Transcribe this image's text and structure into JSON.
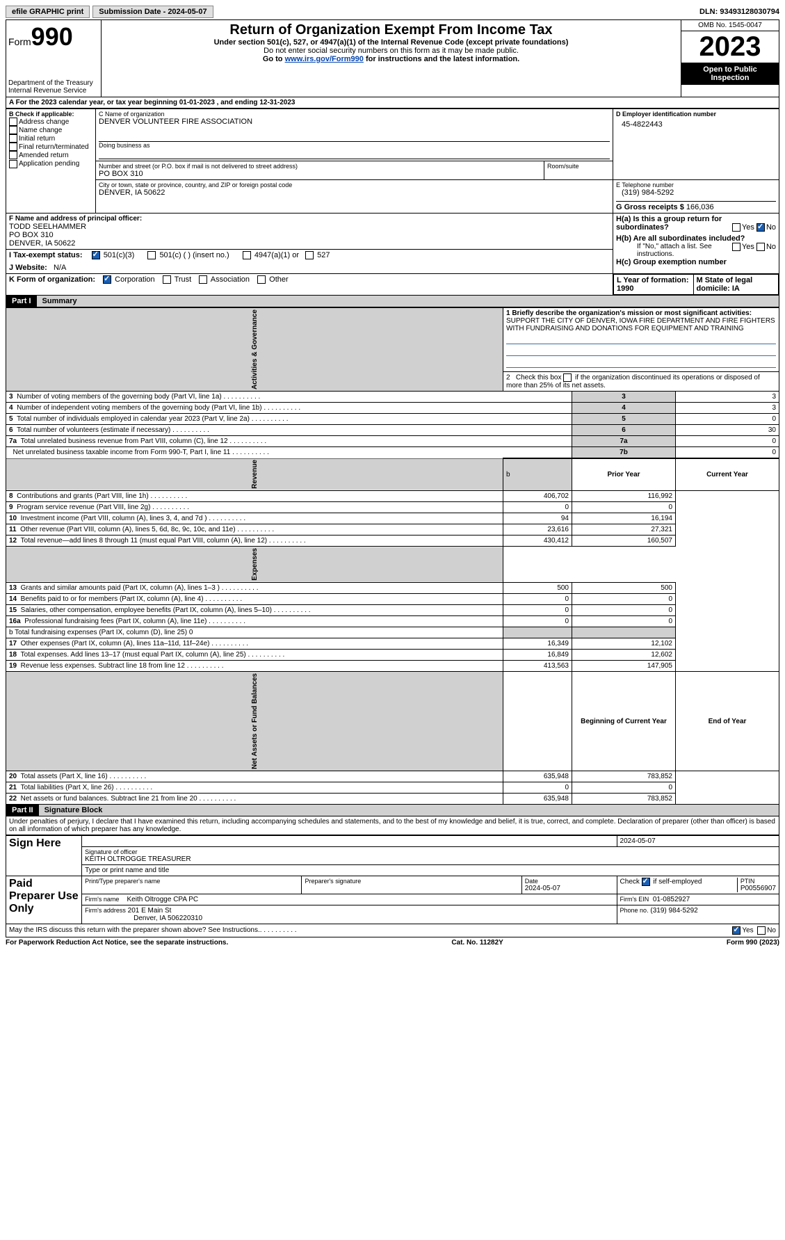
{
  "header": {
    "efile": "efile GRAPHIC print",
    "submission_label": "Submission Date - 2024-05-07",
    "dln_label": "DLN: 93493128030794"
  },
  "title_block": {
    "form_label": "Form",
    "form_no": "990",
    "dept1": "Department of the Treasury",
    "dept2": "Internal Revenue Service",
    "main_title": "Return of Organization Exempt From Income Tax",
    "sub1": "Under section 501(c), 527, or 4947(a)(1) of the Internal Revenue Code (except private foundations)",
    "sub2": "Do not enter social security numbers on this form as it may be made public.",
    "sub3_pre": "Go to ",
    "sub3_link": "www.irs.gov/Form990",
    "sub3_post": " for instructions and the latest information.",
    "omb": "OMB No. 1545-0047",
    "year": "2023",
    "open": "Open to Public Inspection"
  },
  "row_a": {
    "period": "A For the 2023 calendar year, or tax year beginning 01-01-2023    , and ending 12-31-2023",
    "b_label": "B Check if applicable:",
    "b_opts": [
      "Address change",
      "Name change",
      "Initial return",
      "Final return/terminated",
      "Amended return",
      "Application pending"
    ],
    "c_label": "C Name of organization",
    "c_name": "DENVER VOLUNTEER FIRE ASSOCIATION",
    "dba_label": "Doing business as",
    "addr_label": "Number and street (or P.O. box if mail is not delivered to street address)",
    "addr": "PO BOX 310",
    "room_label": "Room/suite",
    "city_label": "City or town, state or province, country, and ZIP or foreign postal code",
    "city": "DENVER, IA  50622",
    "d_label": "D Employer identification number",
    "d_ein": "45-4822443",
    "e_label": "E Telephone number",
    "e_phone": "(319) 984-5292",
    "g_label": "G Gross receipts $",
    "g_amount": "166,036",
    "f_label": "F  Name and address of principal officer:",
    "f_name": "TODD SEELHAMMER",
    "f_addr1": "PO BOX 310",
    "f_addr2": "DENVER, IA  50622",
    "ha_label": "H(a)  Is this a group return for subordinates?",
    "hb_label": "H(b)  Are all subordinates included?",
    "hb_note": "If \"No,\" attach a list. See instructions.",
    "hc_label": "H(c)  Group exemption number",
    "yes": "Yes",
    "no": "No",
    "i_label": "I  Tax-exempt status:",
    "i_opts": [
      "501(c)(3)",
      "501(c) (  ) (insert no.)",
      "4947(a)(1) or",
      "527"
    ],
    "j_label": "J  Website:",
    "j_val": "N/A",
    "k_label": "K Form of organization:",
    "k_opts": [
      "Corporation",
      "Trust",
      "Association",
      "Other"
    ],
    "l_label": "L Year of formation: 1990",
    "m_label": "M State of legal domicile: IA"
  },
  "part1": {
    "hdr": "Part I",
    "title": "Summary",
    "q1_label": "1  Briefly describe the organization's mission or most significant activities:",
    "q1_text": "SUPPORT THE CITY OF DENVER, IOWA FIRE DEPARTMENT AND FIRE FIGHTERS WITH FUNDRAISING AND DONATIONS FOR EQUIPMENT AND TRAINING",
    "q2": "2   Check this box        if the organization discontinued its operations or disposed of more than 25% of its net assets.",
    "gov_label": "Activities & Governance",
    "rev_label": "Revenue",
    "exp_label": "Expenses",
    "net_label": "Net Assets or Fund Balances",
    "lines_gov": [
      {
        "n": "3",
        "t": "Number of voting members of the governing body (Part VI, line 1a)",
        "b": "3",
        "v": "3"
      },
      {
        "n": "4",
        "t": "Number of independent voting members of the governing body (Part VI, line 1b)",
        "b": "4",
        "v": "3"
      },
      {
        "n": "5",
        "t": "Total number of individuals employed in calendar year 2023 (Part V, line 2a)",
        "b": "5",
        "v": "0"
      },
      {
        "n": "6",
        "t": "Total number of volunteers (estimate if necessary)",
        "b": "6",
        "v": "30"
      },
      {
        "n": "7a",
        "t": "Total unrelated business revenue from Part VIII, column (C), line 12",
        "b": "7a",
        "v": "0"
      },
      {
        "n": "",
        "t": "Net unrelated business taxable income from Form 990-T, Part I, line 11",
        "b": "7b",
        "v": "0"
      }
    ],
    "col_prior": "Prior Year",
    "col_curr": "Current Year",
    "lines_rev": [
      {
        "n": "8",
        "t": "Contributions and grants (Part VIII, line 1h)",
        "p": "406,702",
        "c": "116,992"
      },
      {
        "n": "9",
        "t": "Program service revenue (Part VIII, line 2g)",
        "p": "0",
        "c": "0"
      },
      {
        "n": "10",
        "t": "Investment income (Part VIII, column (A), lines 3, 4, and 7d )",
        "p": "94",
        "c": "16,194"
      },
      {
        "n": "11",
        "t": "Other revenue (Part VIII, column (A), lines 5, 6d, 8c, 9c, 10c, and 11e)",
        "p": "23,616",
        "c": "27,321"
      },
      {
        "n": "12",
        "t": "Total revenue—add lines 8 through 11 (must equal Part VIII, column (A), line 12)",
        "p": "430,412",
        "c": "160,507"
      }
    ],
    "lines_exp": [
      {
        "n": "13",
        "t": "Grants and similar amounts paid (Part IX, column (A), lines 1–3 )",
        "p": "500",
        "c": "500"
      },
      {
        "n": "14",
        "t": "Benefits paid to or for members (Part IX, column (A), line 4)",
        "p": "0",
        "c": "0"
      },
      {
        "n": "15",
        "t": "Salaries, other compensation, employee benefits (Part IX, column (A), lines 5–10)",
        "p": "0",
        "c": "0"
      },
      {
        "n": "16a",
        "t": "Professional fundraising fees (Part IX, column (A), line 11e)",
        "p": "0",
        "c": "0"
      }
    ],
    "line_16b": "b   Total fundraising expenses (Part IX, column (D), line 25) 0",
    "lines_exp2": [
      {
        "n": "17",
        "t": "Other expenses (Part IX, column (A), lines 11a–11d, 11f–24e)",
        "p": "16,349",
        "c": "12,102"
      },
      {
        "n": "18",
        "t": "Total expenses. Add lines 13–17 (must equal Part IX, column (A), line 25)",
        "p": "16,849",
        "c": "12,602"
      },
      {
        "n": "19",
        "t": "Revenue less expenses. Subtract line 18 from line 12",
        "p": "413,563",
        "c": "147,905"
      }
    ],
    "col_beg": "Beginning of Current Year",
    "col_end": "End of Year",
    "lines_net": [
      {
        "n": "20",
        "t": "Total assets (Part X, line 16)",
        "p": "635,948",
        "c": "783,852"
      },
      {
        "n": "21",
        "t": "Total liabilities (Part X, line 26)",
        "p": "0",
        "c": "0"
      },
      {
        "n": "22",
        "t": "Net assets or fund balances. Subtract line 21 from line 20",
        "p": "635,948",
        "c": "783,852"
      }
    ]
  },
  "part2": {
    "hdr": "Part II",
    "title": "Signature Block",
    "decl": "Under penalties of perjury, I declare that I have examined this return, including accompanying schedules and statements, and to the best of my knowledge and belief, it is true, correct, and complete. Declaration of preparer (other than officer) is based on all information of which preparer has any knowledge.",
    "sign_here": "Sign Here",
    "sig_officer_label": "Signature of officer",
    "officer": "KEITH OLTROGGE  TREASURER",
    "type_label": "Type or print name and title",
    "sig_date": "2024-05-07",
    "date_label": "Date",
    "paid": "Paid Preparer Use Only",
    "prep_name_label": "Print/Type preparer's name",
    "prep_sig_label": "Preparer's signature",
    "prep_date": "2024-05-07",
    "check_if": "Check         if self-employed",
    "ptin_label": "PTIN",
    "ptin": "P00556907",
    "firm_name_label": "Firm's name",
    "firm_name": "Keith Oltrogge CPA PC",
    "firm_ein_label": "Firm's EIN",
    "firm_ein": "01-0852927",
    "firm_addr_label": "Firm's address",
    "firm_addr1": "201 E Main St",
    "firm_addr2": "Denver, IA  506220310",
    "phone_label": "Phone no.",
    "phone": "(319) 984-5292",
    "may_irs": "May the IRS discuss this return with the preparer shown above? See Instructions."
  },
  "footer": {
    "left": "For Paperwork Reduction Act Notice, see the separate instructions.",
    "mid": "Cat. No. 11282Y",
    "right": "Form 990 (2023)"
  },
  "colors": {
    "black": "#000",
    "gray": "#d0d0d0",
    "link": "#0645ad",
    "check": "#1a5fb4"
  }
}
